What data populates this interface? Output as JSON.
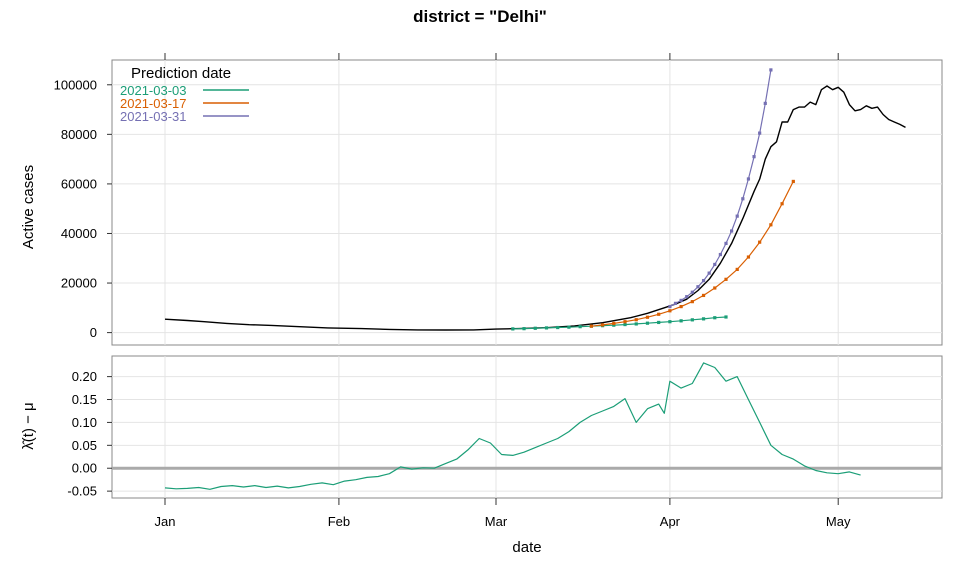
{
  "chart_data": [
    {
      "type": "line",
      "title": "district = \"Delhi\"",
      "xlabel": "date",
      "ylabel": "Active cases",
      "x_ticks": [
        "Jan",
        "Feb",
        "Mar",
        "Apr",
        "May"
      ],
      "ylim": [
        -5000,
        110000
      ],
      "y_ticks": [
        0,
        20000,
        40000,
        60000,
        80000,
        100000
      ],
      "grid": true,
      "legend": {
        "title": "Prediction date",
        "placement": "top-left",
        "entries": [
          {
            "label": "2021-03-03",
            "color": "#1b9e77"
          },
          {
            "label": "2021-03-17",
            "color": "#d95f02"
          },
          {
            "label": "2021-03-31",
            "color": "#7570b3"
          }
        ]
      },
      "series": [
        {
          "color": "#000000",
          "points": [
            [
              "2021-01-01",
              5400
            ],
            [
              "2021-01-05",
              4900
            ],
            [
              "2021-01-08",
              4400
            ],
            [
              "2021-01-12",
              3700
            ],
            [
              "2021-01-16",
              3200
            ],
            [
              "2021-01-20",
              2900
            ],
            [
              "2021-01-25",
              2400
            ],
            [
              "2021-01-30",
              1900
            ],
            [
              "2021-02-05",
              1600
            ],
            [
              "2021-02-10",
              1300
            ],
            [
              "2021-02-15",
              1100
            ],
            [
              "2021-02-20",
              1050
            ],
            [
              "2021-02-25",
              1100
            ],
            [
              "2021-03-01",
              1400
            ],
            [
              "2021-03-05",
              1600
            ],
            [
              "2021-03-10",
              2000
            ],
            [
              "2021-03-15",
              2700
            ],
            [
              "2021-03-20",
              4000
            ],
            [
              "2021-03-25",
              6000
            ],
            [
              "2021-03-28",
              7800
            ],
            [
              "2021-03-31",
              10000
            ],
            [
              "2021-04-02",
              11500
            ],
            [
              "2021-04-04",
              13500
            ],
            [
              "2021-04-06",
              17000
            ],
            [
              "2021-04-08",
              21500
            ],
            [
              "2021-04-10",
              28000
            ],
            [
              "2021-04-12",
              36000
            ],
            [
              "2021-04-14",
              46000
            ],
            [
              "2021-04-16",
              57000
            ],
            [
              "2021-04-17",
              62000
            ],
            [
              "2021-04-18",
              70000
            ],
            [
              "2021-04-19",
              75000
            ],
            [
              "2021-04-20",
              77000
            ],
            [
              "2021-04-21",
              85000
            ],
            [
              "2021-04-22",
              85000
            ],
            [
              "2021-04-23",
              90000
            ],
            [
              "2021-04-24",
              91000
            ],
            [
              "2021-04-25",
              91000
            ],
            [
              "2021-04-26",
              93000
            ],
            [
              "2021-04-27",
              92000
            ],
            [
              "2021-04-28",
              98000
            ],
            [
              "2021-04-29",
              99500
            ],
            [
              "2021-04-30",
              98000
            ],
            [
              "2021-05-01",
              99000
            ],
            [
              "2021-05-02",
              97000
            ],
            [
              "2021-05-03",
              92000
            ],
            [
              "2021-05-04",
              89500
            ],
            [
              "2021-05-05",
              90000
            ],
            [
              "2021-05-06",
              91500
            ],
            [
              "2021-05-07",
              90500
            ],
            [
              "2021-05-08",
              91000
            ],
            [
              "2021-05-09",
              88000
            ],
            [
              "2021-05-10",
              86000
            ],
            [
              "2021-05-11",
              85000
            ],
            [
              "2021-05-12",
              84000
            ],
            [
              "2021-05-13",
              82800
            ]
          ]
        },
        {
          "name": "2021-03-03",
          "color": "#1b9e77",
          "points": [
            [
              "2021-03-04",
              1500
            ],
            [
              "2021-03-06",
              1600
            ],
            [
              "2021-03-08",
              1750
            ],
            [
              "2021-03-10",
              1900
            ],
            [
              "2021-03-12",
              2050
            ],
            [
              "2021-03-14",
              2200
            ],
            [
              "2021-03-16",
              2400
            ],
            [
              "2021-03-18",
              2600
            ],
            [
              "2021-03-20",
              2800
            ],
            [
              "2021-03-22",
              3000
            ],
            [
              "2021-03-24",
              3250
            ],
            [
              "2021-03-26",
              3500
            ],
            [
              "2021-03-28",
              3800
            ],
            [
              "2021-03-30",
              4100
            ],
            [
              "2021-04-01",
              4400
            ],
            [
              "2021-04-03",
              4750
            ],
            [
              "2021-04-05",
              5150
            ],
            [
              "2021-04-07",
              5550
            ],
            [
              "2021-04-09",
              6000
            ],
            [
              "2021-04-11",
              6300
            ]
          ]
        },
        {
          "name": "2021-03-17",
          "color": "#d95f02",
          "points": [
            [
              "2021-03-18",
              2600
            ],
            [
              "2021-03-20",
              3100
            ],
            [
              "2021-03-22",
              3700
            ],
            [
              "2021-03-24",
              4400
            ],
            [
              "2021-03-26",
              5200
            ],
            [
              "2021-03-28",
              6200
            ],
            [
              "2021-03-30",
              7400
            ],
            [
              "2021-04-01",
              8800
            ],
            [
              "2021-04-03",
              10500
            ],
            [
              "2021-04-05",
              12500
            ],
            [
              "2021-04-07",
              15000
            ],
            [
              "2021-04-09",
              18000
            ],
            [
              "2021-04-11",
              21500
            ],
            [
              "2021-04-13",
              25500
            ],
            [
              "2021-04-15",
              30500
            ],
            [
              "2021-04-17",
              36500
            ],
            [
              "2021-04-19",
              43500
            ],
            [
              "2021-04-21",
              52000
            ],
            [
              "2021-04-23",
              61000
            ]
          ]
        },
        {
          "name": "2021-03-31",
          "color": "#7570b3",
          "points": [
            [
              "2021-04-01",
              10500
            ],
            [
              "2021-04-02",
              11800
            ],
            [
              "2021-04-03",
              13000
            ],
            [
              "2021-04-04",
              14500
            ],
            [
              "2021-04-05",
              16300
            ],
            [
              "2021-04-06",
              18500
            ],
            [
              "2021-04-07",
              21000
            ],
            [
              "2021-04-08",
              24000
            ],
            [
              "2021-04-09",
              27500
            ],
            [
              "2021-04-10",
              31500
            ],
            [
              "2021-04-11",
              36000
            ],
            [
              "2021-04-12",
              41000
            ],
            [
              "2021-04-13",
              47000
            ],
            [
              "2021-04-14",
              54000
            ],
            [
              "2021-04-15",
              62000
            ],
            [
              "2021-04-16",
              71000
            ],
            [
              "2021-04-17",
              80500
            ],
            [
              "2021-04-18",
              92500
            ],
            [
              "2021-04-19",
              106000
            ]
          ]
        }
      ]
    },
    {
      "type": "line",
      "xlabel": "date",
      "ylabel": "λ̂(t) − μ",
      "x_ticks": [
        "Jan",
        "Feb",
        "Mar",
        "Apr",
        "May"
      ],
      "ylim": [
        -0.065,
        0.245
      ],
      "y_ticks": [
        "-0.05",
        "0.00",
        "0.05",
        "0.10",
        "0.15",
        "0.20"
      ],
      "y_tick_values": [
        -0.05,
        0.0,
        0.05,
        0.1,
        0.15,
        0.2
      ],
      "reference_line": 0,
      "grid": true,
      "series": [
        {
          "color": "#1b9e77",
          "points": [
            [
              "2021-01-01",
              -0.043
            ],
            [
              "2021-01-03",
              -0.045
            ],
            [
              "2021-01-05",
              -0.044
            ],
            [
              "2021-01-07",
              -0.042
            ],
            [
              "2021-01-09",
              -0.046
            ],
            [
              "2021-01-11",
              -0.04
            ],
            [
              "2021-01-13",
              -0.038
            ],
            [
              "2021-01-15",
              -0.041
            ],
            [
              "2021-01-17",
              -0.038
            ],
            [
              "2021-01-19",
              -0.042
            ],
            [
              "2021-01-21",
              -0.039
            ],
            [
              "2021-01-23",
              -0.043
            ],
            [
              "2021-01-25",
              -0.04
            ],
            [
              "2021-01-27",
              -0.035
            ],
            [
              "2021-01-29",
              -0.032
            ],
            [
              "2021-01-31",
              -0.036
            ],
            [
              "2021-02-02",
              -0.028
            ],
            [
              "2021-02-04",
              -0.025
            ],
            [
              "2021-02-06",
              -0.02
            ],
            [
              "2021-02-08",
              -0.018
            ],
            [
              "2021-02-10",
              -0.012
            ],
            [
              "2021-02-12",
              0.003
            ],
            [
              "2021-02-14",
              -0.002
            ],
            [
              "2021-02-16",
              0.001
            ],
            [
              "2021-02-18",
              0.0
            ],
            [
              "2021-02-20",
              0.01
            ],
            [
              "2021-02-22",
              0.02
            ],
            [
              "2021-02-24",
              0.04
            ],
            [
              "2021-02-26",
              0.065
            ],
            [
              "2021-02-28",
              0.055
            ],
            [
              "2021-03-02",
              0.03
            ],
            [
              "2021-03-04",
              0.028
            ],
            [
              "2021-03-06",
              0.035
            ],
            [
              "2021-03-08",
              0.045
            ],
            [
              "2021-03-10",
              0.055
            ],
            [
              "2021-03-12",
              0.065
            ],
            [
              "2021-03-14",
              0.08
            ],
            [
              "2021-03-16",
              0.1
            ],
            [
              "2021-03-18",
              0.115
            ],
            [
              "2021-03-20",
              0.125
            ],
            [
              "2021-03-22",
              0.135
            ],
            [
              "2021-03-24",
              0.152
            ],
            [
              "2021-03-26",
              0.1
            ],
            [
              "2021-03-28",
              0.13
            ],
            [
              "2021-03-30",
              0.14
            ],
            [
              "2021-03-31",
              0.12
            ],
            [
              "2021-04-01",
              0.19
            ],
            [
              "2021-04-03",
              0.175
            ],
            [
              "2021-04-05",
              0.185
            ],
            [
              "2021-04-07",
              0.23
            ],
            [
              "2021-04-09",
              0.22
            ],
            [
              "2021-04-11",
              0.19
            ],
            [
              "2021-04-13",
              0.2
            ],
            [
              "2021-04-15",
              0.15
            ],
            [
              "2021-04-17",
              0.1
            ],
            [
              "2021-04-19",
              0.05
            ],
            [
              "2021-04-21",
              0.03
            ],
            [
              "2021-04-23",
              0.02
            ],
            [
              "2021-04-25",
              0.005
            ],
            [
              "2021-04-27",
              -0.005
            ],
            [
              "2021-04-29",
              -0.01
            ],
            [
              "2021-05-01",
              -0.012
            ],
            [
              "2021-05-03",
              -0.008
            ],
            [
              "2021-05-05",
              -0.015
            ]
          ]
        }
      ]
    }
  ]
}
